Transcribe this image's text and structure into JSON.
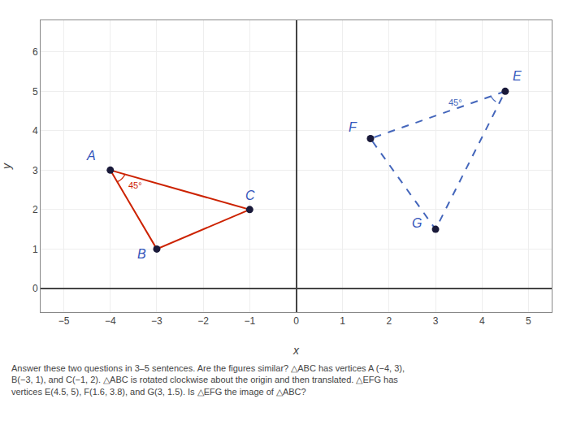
{
  "chart_data": {
    "type": "line",
    "xlabel": "x",
    "ylabel": "y",
    "xlim": [
      -5.5,
      5.5
    ],
    "ylim": [
      -0.6,
      6.8
    ],
    "xticks": [
      {
        "value": -5,
        "label": "−5"
      },
      {
        "value": -4,
        "label": "−4"
      },
      {
        "value": -3,
        "label": "−3"
      },
      {
        "value": -2,
        "label": "−2"
      },
      {
        "value": -1,
        "label": "−1"
      },
      0,
      1,
      2,
      3,
      4,
      5
    ],
    "yticks": [
      0,
      1,
      2,
      3,
      4,
      5,
      6
    ],
    "grid": true,
    "series": [
      {
        "type": "line",
        "color": "#cc2200",
        "line_style": "solid",
        "x": [
          -4,
          -3,
          -1,
          -4
        ],
        "values": [
          3,
          1,
          2,
          3
        ]
      },
      {
        "type": "line",
        "color": "#4466bb",
        "line_style": "dashed",
        "x": [
          4.5,
          1.6,
          3,
          4.5
        ],
        "values": [
          5,
          3.8,
          1.5,
          5
        ]
      },
      {
        "type": "scatter",
        "color": "#1a1a3a",
        "marker": "circle",
        "x": [
          -4,
          -3,
          -1,
          4.5,
          1.6,
          3
        ],
        "values": [
          3,
          1,
          2,
          5,
          3.8,
          1.5
        ]
      }
    ],
    "annotations": [
      {
        "text": "A",
        "x": -4.55,
        "y": 3.15,
        "color": "#3355bb"
      },
      {
        "text": "B",
        "x": -3.45,
        "y": 0.65,
        "color": "#3355bb"
      },
      {
        "text": "C",
        "x": -1.12,
        "y": 2.15,
        "color": "#3355bb"
      },
      {
        "text": "E",
        "x": 4.62,
        "y": 5.18,
        "color": "#3355bb"
      },
      {
        "text": "F",
        "x": 1.1,
        "y": 3.88,
        "color": "#3355bb"
      },
      {
        "text": "G",
        "x": 2.45,
        "y": 1.45,
        "color": "#3355bb"
      },
      {
        "text": "45°",
        "x": -3.65,
        "y": 2.45,
        "color": "#cc2200"
      },
      {
        "text": "45°",
        "x": 3.25,
        "y": 4.55,
        "color": "#4466bb"
      },
      {
        "text": "Answer these two questions in 3–5 sentences. Are the figures similar? △ABC has vertices A (−4, 3),\nB(−3, 1), and C(−1, 2). △ABC is rotated clockwise about the origin and then translated. △EFG has\nvertices E(4.5, 5), F(1.6, 3.8), and G(3, 1.5). Is △EFG the image of △ABC?"
      }
    ]
  }
}
